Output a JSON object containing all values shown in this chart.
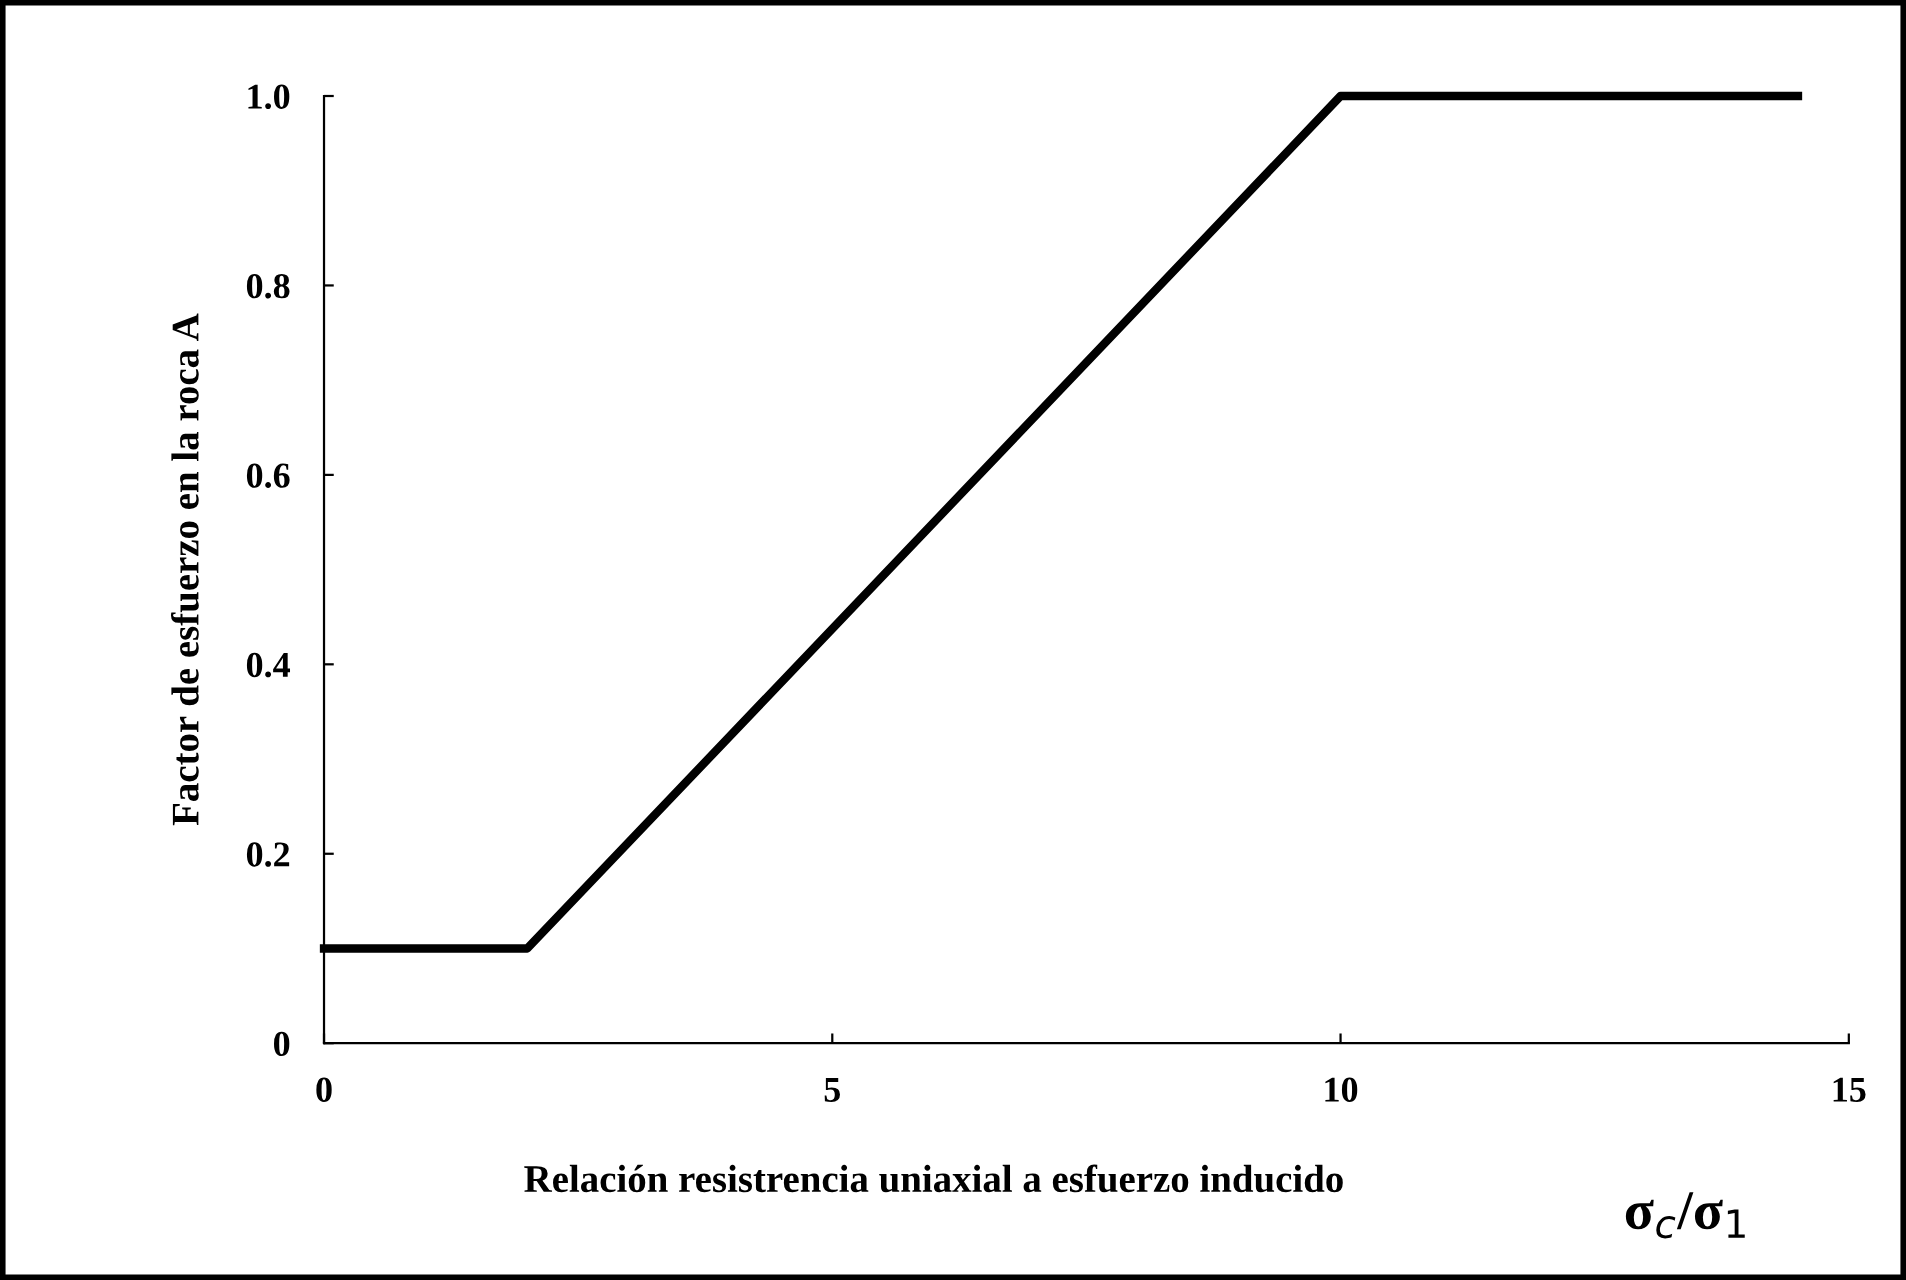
{
  "chart_data": {
    "type": "line",
    "xlabel": "Relación resistrencia uniaxial a esfuerzo inducido",
    "ylabel": "Factor de esfuerzo en la roca A",
    "series": [
      {
        "color": "#000000",
        "x": [
          0,
          2,
          10,
          14.5
        ],
        "values": [
          0.1,
          0.1,
          1.0,
          1.0
        ]
      }
    ],
    "xlim": [
      0,
      15
    ],
    "xticks": [
      0,
      5,
      10,
      15
    ],
    "ylim": [
      0,
      1.0
    ],
    "yticks": [
      0,
      0.2,
      0.4,
      0.6,
      0.8,
      {
        "value": 1.0,
        "label": "1.0"
      }
    ],
    "annotations": [
      "σ$_{c}$/σ$_{1}$"
    ],
    "grid": false,
    "legend": false,
    "marker": "none",
    "line_style": "solid"
  }
}
